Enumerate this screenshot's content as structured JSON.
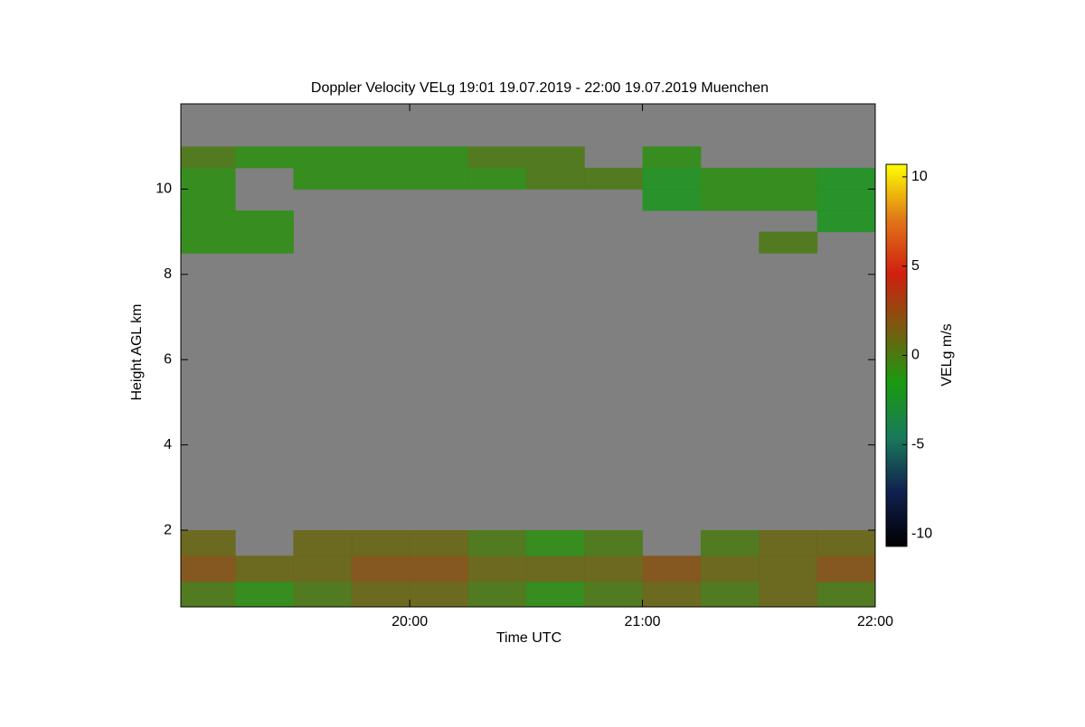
{
  "chart_data": {
    "type": "heatmap",
    "title": "Doppler Velocity VELg   19:01 19.07.2019 - 22:00 19.07.2019 Muenchen",
    "x_label": "Time UTC",
    "y_label": "Height AGL km",
    "xlim": [
      "19:01",
      "22:00"
    ],
    "xticks": [
      "20:00",
      "21:00",
      "22:00"
    ],
    "ylim": [
      0.2,
      12
    ],
    "yticks": [
      2,
      4,
      6,
      8,
      10
    ],
    "background": "#808080",
    "x_bins": [
      "19:01",
      "19:15",
      "19:30",
      "19:45",
      "20:00",
      "20:15",
      "20:30",
      "20:45",
      "21:00",
      "21:15",
      "21:30",
      "21:45",
      "22:00"
    ],
    "y_bins": [
      0.2,
      0.8,
      1.4,
      2.0,
      8.5,
      9.0,
      9.5,
      10.0,
      10.5,
      11.0
    ],
    "values": [
      [
        0,
        -1,
        0,
        1,
        1,
        0,
        -1,
        0,
        1,
        0,
        1,
        0
      ],
      [
        2,
        1,
        1,
        2,
        2,
        1,
        1,
        1,
        2,
        1,
        1,
        2
      ],
      [
        1,
        null,
        1,
        1,
        1,
        0,
        -1,
        0,
        null,
        0,
        1,
        1
      ],
      [
        null,
        null,
        null,
        null,
        null,
        null,
        null,
        null,
        null,
        null,
        null,
        null
      ],
      [
        -1,
        -1,
        null,
        null,
        null,
        null,
        null,
        null,
        null,
        null,
        0,
        null
      ],
      [
        -1,
        -1,
        null,
        null,
        null,
        null,
        null,
        null,
        null,
        null,
        null,
        -2
      ],
      [
        -1,
        null,
        null,
        null,
        null,
        null,
        null,
        null,
        -2,
        -1,
        -1,
        -2
      ],
      [
        -1,
        null,
        -1,
        -1,
        -1,
        -1,
        0,
        0,
        -2,
        -1,
        -1,
        -2
      ],
      [
        0,
        -1,
        -1,
        -1,
        -1,
        0,
        0,
        null,
        -1,
        null,
        null,
        null
      ]
    ],
    "colorbar": {
      "label": "VELg m/s",
      "lim": [
        -10.7,
        10.7
      ],
      "ticks": [
        -10,
        -5,
        0,
        5,
        10
      ],
      "colors": [
        "#000000",
        "#102050",
        "#1a7a5a",
        "#1a9a10",
        "#7a5a10",
        "#d02010",
        "#e07818",
        "#ffff00"
      ]
    }
  }
}
